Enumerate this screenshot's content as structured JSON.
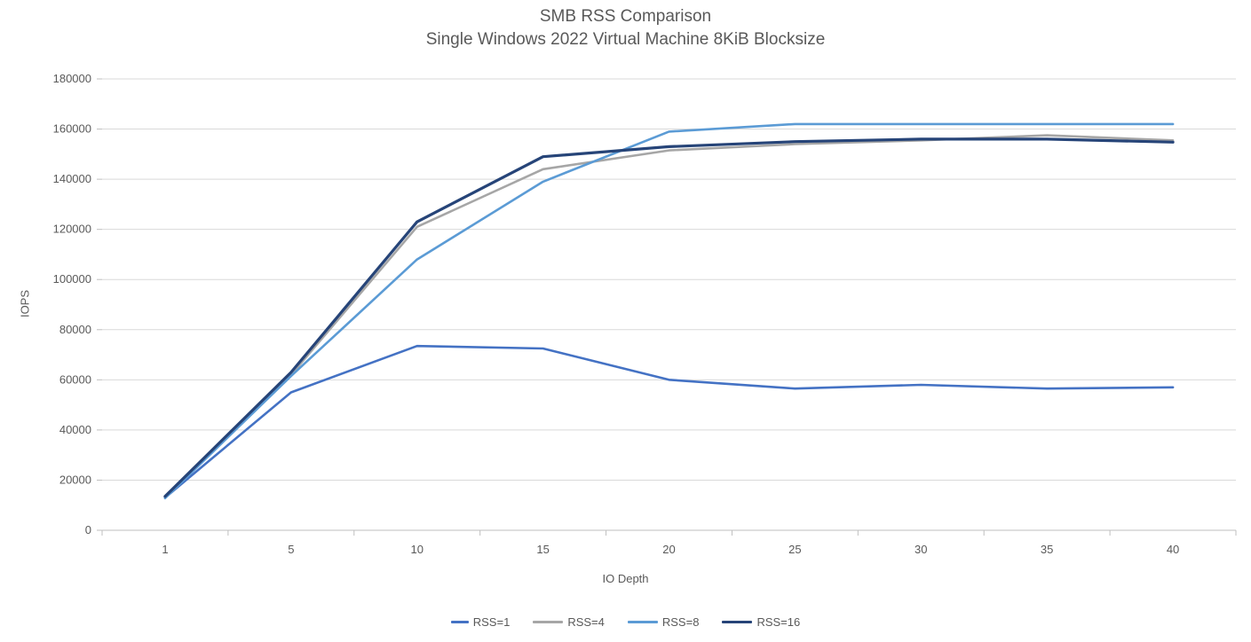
{
  "chart_data": {
    "type": "line",
    "title": "SMB RSS Comparison",
    "subtitle": "Single Windows 2022 Virtual Machine 8KiB Blocksize",
    "xlabel": "IO Depth",
    "ylabel": "IOPS",
    "categories": [
      "1",
      "5",
      "10",
      "15",
      "20",
      "25",
      "30",
      "35",
      "40"
    ],
    "y_ticks": [
      0,
      20000,
      40000,
      60000,
      80000,
      100000,
      120000,
      140000,
      160000,
      180000
    ],
    "ylim": [
      0,
      180000
    ],
    "grid": true,
    "legend_position": "bottom",
    "series": [
      {
        "name": "RSS=1",
        "color": "#4472C4",
        "values": [
          13000,
          55000,
          73500,
          72500,
          60000,
          56500,
          58000,
          56500,
          57000
        ]
      },
      {
        "name": "RSS=4",
        "color": "#A6A6A6",
        "values": [
          13000,
          62000,
          121000,
          144000,
          151500,
          154000,
          155500,
          157500,
          155500
        ]
      },
      {
        "name": "RSS=8",
        "color": "#5B9BD5",
        "values": [
          12800,
          61500,
          108000,
          139000,
          159000,
          162000,
          162000,
          162000,
          162000
        ]
      },
      {
        "name": "RSS=16",
        "color": "#264478",
        "values": [
          13500,
          63000,
          123000,
          149000,
          153000,
          155000,
          156000,
          156000,
          154800
        ]
      }
    ],
    "colors": {
      "gridline": "#D9D9D9",
      "axis_line": "#BFBFBF",
      "tick_label": "#595959",
      "title_text": "#595959",
      "background": "#FFFFFF"
    }
  }
}
